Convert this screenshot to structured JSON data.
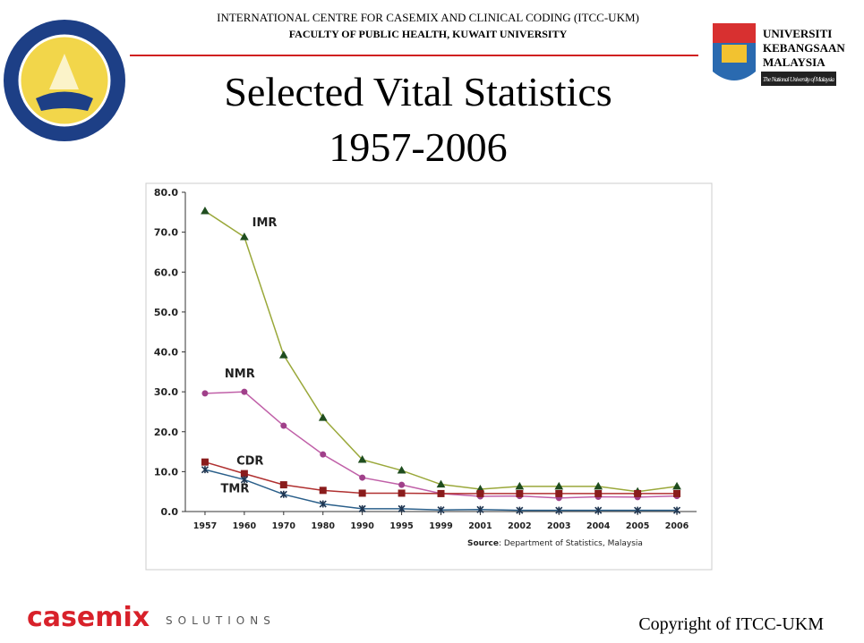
{
  "header": {
    "line1": "INTERNATIONAL CENTRE FOR CASEMIX AND CLINICAL CODING (ITCC-UKM)",
    "line2": "FACULTY OF PUBLIC HEALTH, KUWAIT UNIVERSITY",
    "title": "Selected Vital Statistics",
    "subtitle": "1957-2006"
  },
  "ukm_logo": {
    "line1": "UNIVERSITI",
    "line2": "KEBANGSAAN",
    "line3": "MALAYSIA",
    "line4": "The National University of Malaysia"
  },
  "footer": {
    "brand": "casemix",
    "brand_sub": "SOLUTIONS",
    "copyright": "Copyright of ITCC-UKM"
  },
  "chart_data": {
    "type": "line",
    "categories": [
      "1957",
      "1960",
      "1970",
      "1980",
      "1990",
      "1995",
      "1999",
      "2001",
      "2002",
      "2003",
      "2004",
      "2005",
      "2006"
    ],
    "series": [
      {
        "name": "IMR",
        "color": "#9aa83a",
        "marker_color": "#1f4d1f",
        "marker": "triangle",
        "values": [
          75.3,
          68.8,
          39.2,
          23.5,
          13.0,
          10.3,
          6.8,
          5.6,
          6.3,
          6.3,
          6.3,
          5.0,
          6.3
        ]
      },
      {
        "name": "NMR",
        "color": "#c060a8",
        "marker_color": "#a0408a",
        "marker": "circle",
        "values": [
          29.6,
          30.0,
          21.5,
          14.3,
          8.5,
          6.7,
          4.5,
          3.8,
          3.9,
          3.4,
          3.7,
          3.6,
          3.9
        ]
      },
      {
        "name": "CDR",
        "color": "#b03030",
        "marker_color": "#8a1c1c",
        "marker": "square",
        "values": [
          12.4,
          9.5,
          6.7,
          5.3,
          4.6,
          4.6,
          4.5,
          4.5,
          4.5,
          4.5,
          4.5,
          4.5,
          4.5
        ]
      },
      {
        "name": "TMR",
        "color": "#2a5f8a",
        "marker_color": "#1f3550",
        "marker": "star",
        "values": [
          10.5,
          8.0,
          4.3,
          1.9,
          0.7,
          0.7,
          0.4,
          0.5,
          0.3,
          0.3,
          0.3,
          0.3,
          0.3
        ]
      }
    ],
    "ylim": [
      0,
      80
    ],
    "yticks": [
      {
        "value": 0,
        "label": "0.0"
      },
      {
        "value": 10,
        "label": "10.0"
      },
      {
        "value": 20,
        "label": "20.0"
      },
      {
        "value": 30,
        "label": "30.0"
      },
      {
        "value": 40,
        "label": "40.0"
      },
      {
        "value": 50,
        "label": "50.0"
      },
      {
        "value": 60,
        "label": "60.0"
      },
      {
        "value": 70,
        "label": "70.0"
      },
      {
        "value": 80,
        "label": "80.0"
      }
    ],
    "source_label": "Source",
    "source": ": Department of Statistics, Malaysia"
  }
}
